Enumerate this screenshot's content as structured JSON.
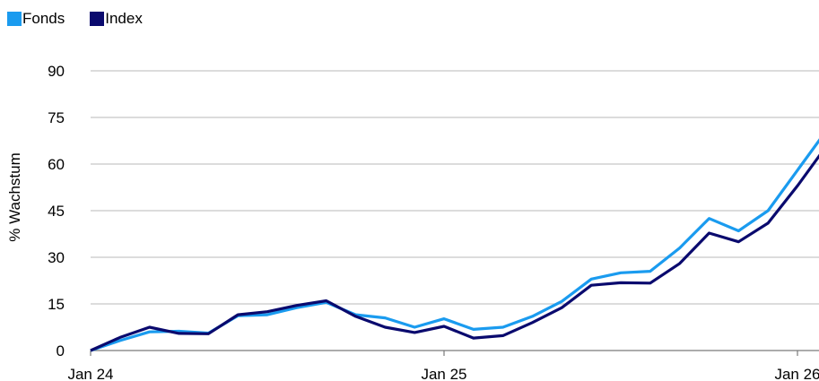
{
  "chart_data": {
    "type": "line",
    "ylabel": "% Wachstum",
    "ylim": [
      0,
      90
    ],
    "yticks": [
      0,
      15,
      30,
      45,
      60,
      75,
      90
    ],
    "xticks": [
      "Jan 24",
      "Jan 25",
      "Jan 26"
    ],
    "grid": "horizontal",
    "legend_position": "top-left",
    "x": [
      "2024-01",
      "2024-02",
      "2024-03",
      "2024-04",
      "2024-05",
      "2024-06",
      "2024-07",
      "2024-08",
      "2024-09",
      "2024-10",
      "2024-11",
      "2024-12",
      "2025-01",
      "2025-02",
      "2025-03",
      "2025-04",
      "2025-05",
      "2025-06",
      "2025-07",
      "2025-08",
      "2025-09",
      "2025-10",
      "2025-11",
      "2025-12",
      "2026-01",
      "2026-02"
    ],
    "series": [
      {
        "name": "Fonds",
        "color": "#1a9bef",
        "values": [
          0,
          3.2,
          6.0,
          6.2,
          5.6,
          11.2,
          11.5,
          13.8,
          15.5,
          11.5,
          10.5,
          7.5,
          10.2,
          6.8,
          7.5,
          11.0,
          15.8,
          23.0,
          25.0,
          25.5,
          33.0,
          42.5,
          38.5,
          45.0,
          58.0,
          71.0
        ]
      },
      {
        "name": "Index",
        "color": "#0a0a6e",
        "values": [
          0,
          4.2,
          7.5,
          5.5,
          5.4,
          11.5,
          12.5,
          14.5,
          16.0,
          11.0,
          7.5,
          5.8,
          7.8,
          4.0,
          4.8,
          9.0,
          13.8,
          21.0,
          21.8,
          21.7,
          28.0,
          37.8,
          35.0,
          41.0,
          53.0,
          66.0
        ]
      }
    ]
  }
}
